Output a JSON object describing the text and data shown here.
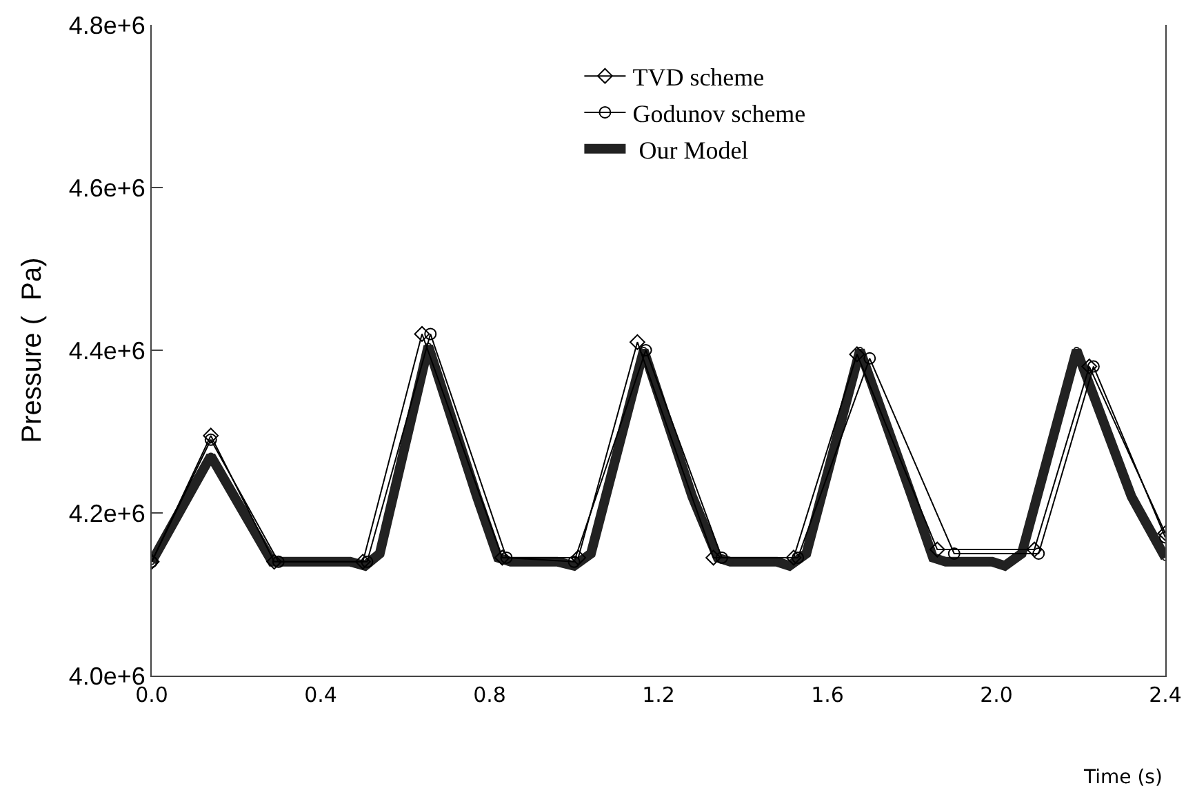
{
  "chart_data": {
    "type": "line",
    "xlabel": "Time (s)",
    "ylabel": "Pressure (  Pa)",
    "xlim": [
      0,
      2.4
    ],
    "xticks": [
      {
        "value": 0,
        "label": "0.0"
      },
      {
        "value": 0.4,
        "label": "0.4"
      },
      {
        "value": 0.8,
        "label": "0.8"
      },
      {
        "value": 1.2,
        "label": "1.2"
      },
      {
        "value": 1.6,
        "label": "1.6"
      },
      {
        "value": 2.0,
        "label": "2.0"
      },
      {
        "value": 2.4,
        "label": "2.4"
      }
    ],
    "ylim": [
      4000000,
      4800000
    ],
    "yticks": [
      {
        "value": 4000000,
        "label": "4.0e+6"
      },
      {
        "value": 4200000,
        "label": "4.2e+6"
      },
      {
        "value": 4400000,
        "label": "4.4e+6"
      },
      {
        "value": 4600000,
        "label": "4.6e+6"
      },
      {
        "value": 4800000,
        "label": "4.8e+6"
      }
    ],
    "grid": false,
    "legend": "top",
    "line_style": "solid",
    "series": [
      {
        "name": "TVD scheme",
        "color": "#000000",
        "marker": "diamond",
        "x": [
          0,
          0.14,
          0.29,
          0.5,
          0.64,
          0.83,
          1.01,
          1.15,
          1.33,
          1.52,
          1.67,
          1.86,
          2.09,
          2.22,
          2.4
        ],
        "values": [
          4140000,
          4295000,
          4140000,
          4140000,
          4420000,
          4145000,
          4145000,
          4410000,
          4145000,
          4145000,
          4395000,
          4155000,
          4155000,
          4380000,
          4175000
        ]
      },
      {
        "name": "Godunov scheme",
        "color": "#000000",
        "marker": "circle",
        "x": [
          0,
          0.14,
          0.3,
          0.51,
          0.66,
          0.84,
          1.0,
          1.17,
          1.35,
          1.53,
          1.7,
          1.9,
          2.1,
          2.23,
          2.4
        ],
        "values": [
          4140000,
          4290000,
          4140000,
          4140000,
          4420000,
          4145000,
          4140000,
          4400000,
          4145000,
          4145000,
          4390000,
          4150000,
          4150000,
          4380000,
          4170000
        ]
      },
      {
        "name": " Our Model",
        "color": "#222222",
        "marker": "circle",
        "x": [
          0,
          0.14,
          0.285,
          0.47,
          0.505,
          0.54,
          0.655,
          0.77,
          0.82,
          0.85,
          0.96,
          1.0,
          1.04,
          1.165,
          1.28,
          1.34,
          1.37,
          1.48,
          1.51,
          1.55,
          1.677,
          1.8,
          1.85,
          1.88,
          1.99,
          2.02,
          2.06,
          2.19,
          2.32,
          2.4
        ],
        "values": [
          4140000,
          4270000,
          4140000,
          4140000,
          4135000,
          4150000,
          4405000,
          4220000,
          4145000,
          4140000,
          4140000,
          4135000,
          4150000,
          4400000,
          4220000,
          4145000,
          4140000,
          4140000,
          4135000,
          4150000,
          4400000,
          4220000,
          4145000,
          4140000,
          4140000,
          4135000,
          4150000,
          4400000,
          4220000,
          4145000
        ]
      }
    ]
  }
}
